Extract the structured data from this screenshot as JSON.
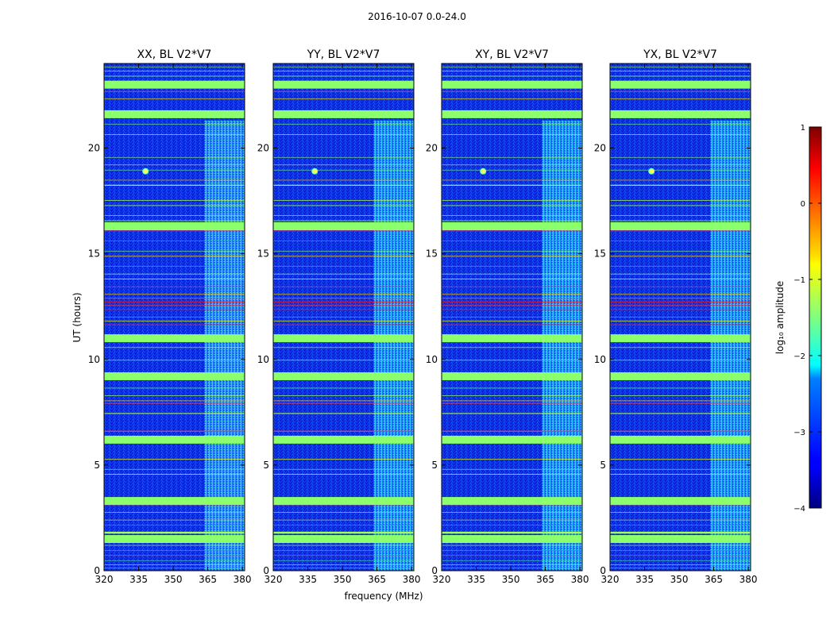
{
  "suptitle": "2016-10-07 0.0-24.0",
  "chart_data": {
    "type": "heatmap",
    "panels": [
      {
        "title": "XX, BL V2*V7"
      },
      {
        "title": "YY, BL V2*V7"
      },
      {
        "title": "XY, BL V2*V7"
      },
      {
        "title": "YX, BL V2*V7"
      }
    ],
    "xlabel": "frequency (MHz)",
    "ylabel": "UT (hours)",
    "xlim": [
      320,
      381
    ],
    "ylim": [
      0,
      24
    ],
    "xticks": [
      320,
      335,
      350,
      365,
      380
    ],
    "yticks": [
      0,
      5,
      10,
      15,
      20
    ],
    "colorbar": {
      "label": "log₁₀ amplitude",
      "range": [
        -4,
        1
      ],
      "ticks": [
        1,
        0,
        -1,
        -2,
        -3,
        -4
      ],
      "tick_labels": [
        "1",
        "0",
        "−1",
        "−2",
        "−3",
        "−4"
      ],
      "colormap": "jet"
    },
    "features": {
      "rfi_band_mhz": [
        363.5,
        381
      ],
      "bright_point": {
        "freq_mhz": 338,
        "ut_hours": 18.9
      },
      "flagged_rows_ut": [
        1.5,
        3.3,
        6.2,
        9.2,
        11.0,
        16.3,
        21.6,
        23.0
      ]
    }
  }
}
